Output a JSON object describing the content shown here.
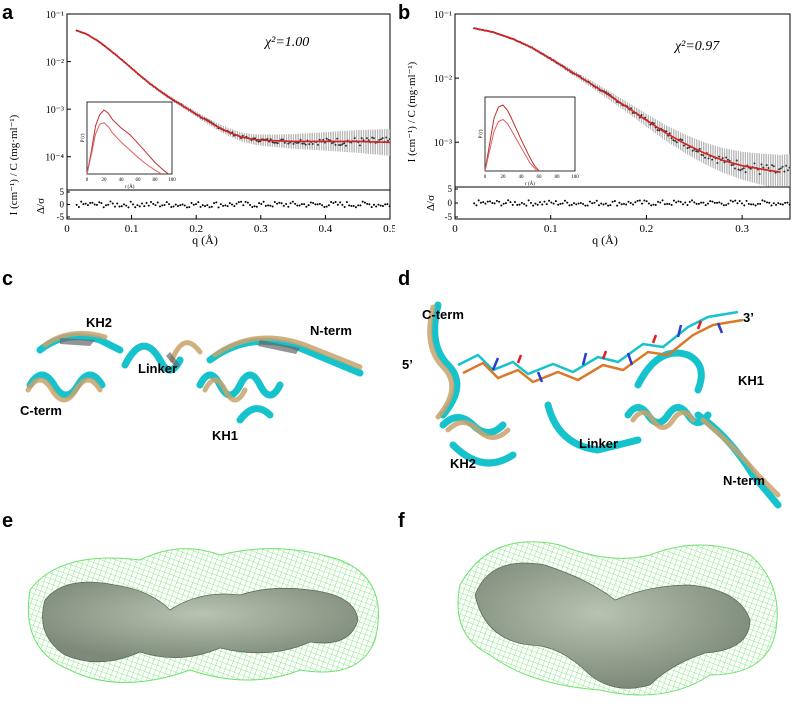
{
  "panels": {
    "a": "a",
    "b": "b",
    "c": "c",
    "d": "d",
    "e": "e",
    "f": "f"
  },
  "ylabel_main": "I (cm⁻¹) / C (mg·ml⁻¹)",
  "ylabel_resid": "Δ/σ",
  "xlabel": "q (Å)",
  "chart_a": {
    "chi": "χ²=1.00",
    "yticks": [
      "10⁻¹",
      "10⁻²",
      "10⁻³",
      "10⁻⁴"
    ],
    "resid_ticks": [
      "5",
      "0",
      "-5"
    ],
    "xticks": [
      "0",
      "0.1",
      "0.2",
      "0.3",
      "0.4",
      "0.5"
    ],
    "inset_xticks": [
      "0",
      "20",
      "40",
      "60",
      "80",
      "100"
    ],
    "inset_xlabel": "r (Å)",
    "inset_ylabel": "P (r)"
  },
  "chart_b": {
    "chi": "χ²=0.97",
    "yticks": [
      "10⁻¹",
      "10⁻²",
      "10⁻³"
    ],
    "resid_ticks": [
      "5",
      "0",
      "-5"
    ],
    "xticks": [
      "0",
      "0.1",
      "0.2",
      "0.3"
    ],
    "inset_xticks": [
      "0",
      "20",
      "40",
      "60",
      "80",
      "100"
    ],
    "inset_xlabel": "r (Å)",
    "inset_ylabel": "P (r)"
  },
  "struct_c": {
    "kh2": "KH2",
    "linker": "Linker",
    "cterm": "C-term",
    "nterm": "N-term",
    "kh1": "KH1"
  },
  "struct_d": {
    "cterm": "C-term",
    "five": "5’",
    "three": "3’",
    "kh1": "KH1",
    "kh2": "KH2",
    "linker": "Linker",
    "nterm": "N-term"
  },
  "colors": {
    "fit": "#d62020",
    "data": "#555555",
    "cyan": "#16c3cc",
    "wheat": "#c8a36c",
    "mesh": "#6fe26f",
    "surface": "#9aa69a"
  },
  "chart_data": [
    {
      "type": "scatter",
      "title": "",
      "xlabel": "q (Å)",
      "ylabel": "I (cm⁻¹) / C (mg·ml⁻¹)",
      "log_y": true,
      "xlim": [
        0,
        0.5
      ],
      "ylim": [
        2e-05,
        0.1
      ],
      "annotation": "χ²=1.00",
      "series": [
        {
          "x": [
            0.015,
            0.03,
            0.05,
            0.07,
            0.09,
            0.11,
            0.13,
            0.15,
            0.17,
            0.19,
            0.21,
            0.23,
            0.25,
            0.27,
            0.29,
            0.31,
            0.35,
            0.4,
            0.45,
            0.5
          ],
          "y": [
            0.045,
            0.038,
            0.026,
            0.016,
            0.0095,
            0.0055,
            0.0033,
            0.0021,
            0.0014,
            0.00095,
            0.00065,
            0.00045,
            0.00033,
            0.00026,
            0.00023,
            0.00022,
            0.00021,
            0.00021,
            0.00021,
            0.0002
          ]
        }
      ],
      "inset": {
        "xlabel": "r (Å)",
        "ylabel": "P (r)",
        "xlim": [
          0,
          100
        ],
        "series": [
          {
            "x": [
              0,
              5,
              10,
              15,
              20,
              25,
              30,
              40,
              50,
              60,
              70,
              80,
              90,
              96
            ],
            "y": [
              0,
              0.35,
              0.75,
              0.93,
              1.0,
              0.95,
              0.85,
              0.72,
              0.62,
              0.48,
              0.33,
              0.18,
              0.06,
              0
            ]
          },
          {
            "x": [
              0,
              5,
              10,
              15,
              20,
              25,
              30,
              40,
              50,
              60,
              70,
              80,
              88
            ],
            "y": [
              0,
              0.3,
              0.62,
              0.78,
              0.8,
              0.74,
              0.64,
              0.5,
              0.38,
              0.26,
              0.15,
              0.06,
              0
            ]
          }
        ]
      },
      "residual": {
        "ylim": [
          -5,
          5
        ],
        "spread": 1.2
      }
    },
    {
      "type": "scatter",
      "title": "",
      "xlabel": "q (Å)",
      "ylabel": "I (cm⁻¹) / C (mg·ml⁻¹)",
      "log_y": true,
      "xlim": [
        0,
        0.35
      ],
      "ylim": [
        0.0002,
        0.1
      ],
      "annotation": "χ²=0.97",
      "series": [
        {
          "x": [
            0.02,
            0.04,
            0.06,
            0.08,
            0.1,
            0.12,
            0.14,
            0.16,
            0.18,
            0.2,
            0.22,
            0.24,
            0.26,
            0.28,
            0.3,
            0.32,
            0.34
          ],
          "y": [
            0.06,
            0.052,
            0.041,
            0.03,
            0.02,
            0.013,
            0.0085,
            0.0055,
            0.0035,
            0.0022,
            0.0014,
            0.00095,
            0.00068,
            0.00052,
            0.00043,
            0.00038,
            0.00034
          ]
        }
      ],
      "inset": {
        "xlabel": "r (Å)",
        "ylabel": "P (r)",
        "xlim": [
          0,
          100
        ],
        "series": [
          {
            "x": [
              0,
              5,
              10,
              15,
              20,
              25,
              30,
              40,
              50,
              55,
              60
            ],
            "y": [
              0,
              0.4,
              0.8,
              0.97,
              1.0,
              0.92,
              0.78,
              0.48,
              0.2,
              0.08,
              0
            ]
          },
          {
            "x": [
              0,
              5,
              10,
              15,
              20,
              25,
              30,
              40,
              50,
              58
            ],
            "y": [
              0,
              0.3,
              0.6,
              0.75,
              0.78,
              0.72,
              0.6,
              0.36,
              0.12,
              0
            ]
          }
        ]
      },
      "residual": {
        "ylim": [
          -5,
          5
        ],
        "spread": 1.0
      }
    }
  ]
}
